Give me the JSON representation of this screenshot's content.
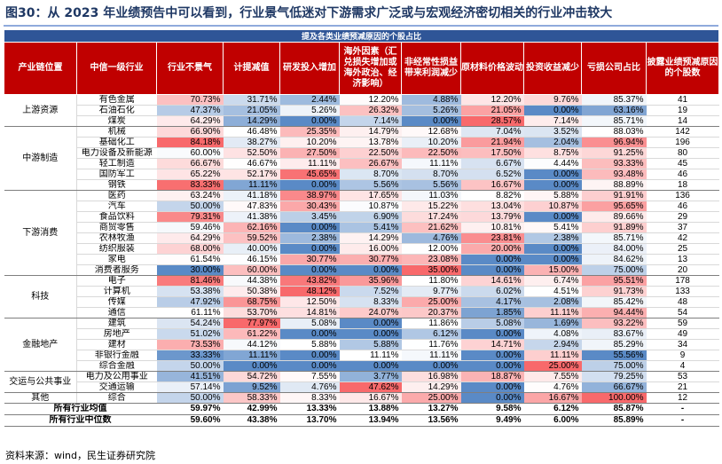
{
  "title": "图30：从 2023 年业绩预告中可以看到，行业景气低迷对下游需求广泛或与宏观经济密切相关的行业冲击较大",
  "source": "资料来源：wind，民生证券研究院",
  "chart_data": {
    "type": "table",
    "super_header": "提及各类业绩预减原因的个股占比",
    "columns": [
      "产业链位置",
      "中信一级行业",
      "行业不景气",
      "计提减值",
      "研发投入增加",
      "海外因素（汇兑损失增加或海外政治、经济影响）",
      "非经常性损益带来利润减少",
      "原材料价格波动",
      "投资收益减少",
      "亏损公司占比",
      "披露业绩预减原因的个股数"
    ],
    "colors": {
      "red": "#f8696b",
      "blue": "#5a8ac6",
      "white": "#ffffff",
      "header": "#c00000",
      "super_header": "#2f5597"
    },
    "groups": [
      {
        "name": "上游资源",
        "rows": [
          {
            "industry": "有色金属",
            "values": [
              "70.73%",
              "31.71%",
              "2.44%",
              "12.20%",
              "4.88%",
              "12.20%",
              "9.76%",
              "85.37%"
            ],
            "count": "41"
          },
          {
            "industry": "石油石化",
            "values": [
              "47.37%",
              "21.05%",
              "5.26%",
              "26.32%",
              "5.26%",
              "21.05%",
              "0.00%",
              "63.16%"
            ],
            "count": "19"
          },
          {
            "industry": "煤炭",
            "values": [
              "64.29%",
              "14.29%",
              "0.00%",
              "7.14%",
              "0.00%",
              "28.57%",
              "7.14%",
              "85.71%"
            ],
            "count": "14"
          }
        ]
      },
      {
        "name": "中游制造",
        "rows": [
          {
            "industry": "机械",
            "values": [
              "66.90%",
              "46.48%",
              "25.35%",
              "14.79%",
              "12.68%",
              "7.04%",
              "3.52%",
              "88.03%"
            ],
            "count": "142"
          },
          {
            "industry": "基础化工",
            "values": [
              "84.18%",
              "38.27%",
              "10.20%",
              "13.78%",
              "10.20%",
              "21.94%",
              "2.04%",
              "96.94%"
            ],
            "count": "196"
          },
          {
            "industry": "电力设备及新能源",
            "values": [
              "60.00%",
              "52.50%",
              "27.50%",
              "22.50%",
              "22.50%",
              "17.50%",
              "8.75%",
              "91.25%"
            ],
            "count": "80"
          },
          {
            "industry": "轻工制造",
            "values": [
              "66.67%",
              "46.67%",
              "11.11%",
              "26.67%",
              "11.11%",
              "6.67%",
              "4.44%",
              "93.33%"
            ],
            "count": "45"
          },
          {
            "industry": "国防军工",
            "values": [
              "65.22%",
              "52.17%",
              "45.65%",
              "8.70%",
              "8.70%",
              "6.52%",
              "0.00%",
              "93.48%"
            ],
            "count": "46"
          },
          {
            "industry": "钢铁",
            "values": [
              "83.33%",
              "11.11%",
              "0.00%",
              "5.56%",
              "5.56%",
              "16.67%",
              "0.00%",
              "88.89%"
            ],
            "count": "18"
          }
        ]
      },
      {
        "name": "下游消费",
        "rows": [
          {
            "industry": "医药",
            "values": [
              "63.24%",
              "41.18%",
              "38.97%",
              "17.65%",
              "11.03%",
              "8.82%",
              "5.88%",
              "91.91%"
            ],
            "count": "136"
          },
          {
            "industry": "汽车",
            "values": [
              "50.00%",
              "47.83%",
              "30.43%",
              "10.87%",
              "15.22%",
              "13.04%",
              "10.87%",
              "95.65%"
            ],
            "count": "46"
          },
          {
            "industry": "食品饮料",
            "values": [
              "79.31%",
              "41.38%",
              "3.45%",
              "6.90%",
              "17.24%",
              "13.79%",
              "0.00%",
              "89.66%"
            ],
            "count": "29"
          },
          {
            "industry": "商贸零售",
            "values": [
              "59.46%",
              "62.16%",
              "0.00%",
              "5.41%",
              "21.62%",
              "10.81%",
              "5.41%",
              "91.89%"
            ],
            "count": "37"
          },
          {
            "industry": "农林牧渔",
            "values": [
              "64.29%",
              "59.52%",
              "2.38%",
              "14.29%",
              "4.76%",
              "23.81%",
              "2.38%",
              "85.71%"
            ],
            "count": "42"
          },
          {
            "industry": "纺织服装",
            "values": [
              "68.00%",
              "40.00%",
              "0.00%",
              "16.00%",
              "12.00%",
              "20.00%",
              "0.00%",
              "84.00%"
            ],
            "count": "25"
          },
          {
            "industry": "家电",
            "values": [
              "61.54%",
              "46.15%",
              "30.77%",
              "30.77%",
              "23.08%",
              "0.00%",
              "0.00%",
              "84.62%"
            ],
            "count": "13"
          },
          {
            "industry": "消费者服务",
            "values": [
              "30.00%",
              "60.00%",
              "0.00%",
              "0.00%",
              "35.00%",
              "0.00%",
              "15.00%",
              "75.00%"
            ],
            "count": "20"
          }
        ]
      },
      {
        "name": "科技",
        "rows": [
          {
            "industry": "电子",
            "values": [
              "81.46%",
              "44.38%",
              "43.82%",
              "35.96%",
              "11.80%",
              "14.61%",
              "6.74%",
              "95.51%"
            ],
            "count": "178"
          },
          {
            "industry": "计算机",
            "values": [
              "53.38%",
              "50.38%",
              "48.12%",
              "7.52%",
              "9.77%",
              "6.02%",
              "4.51%",
              "91.73%"
            ],
            "count": "133"
          },
          {
            "industry": "传媒",
            "values": [
              "47.92%",
              "68.75%",
              "12.50%",
              "8.33%",
              "25.00%",
              "4.17%",
              "2.08%",
              "85.42%"
            ],
            "count": "48"
          },
          {
            "industry": "通信",
            "values": [
              "61.11%",
              "53.70%",
              "14.81%",
              "24.07%",
              "20.37%",
              "1.85%",
              "11.11%",
              "94.44%"
            ],
            "count": "54"
          }
        ]
      },
      {
        "name": "金融地产",
        "rows": [
          {
            "industry": "建筑",
            "values": [
              "54.24%",
              "77.97%",
              "5.08%",
              "0.00%",
              "11.86%",
              "5.08%",
              "1.69%",
              "93.22%"
            ],
            "count": "59"
          },
          {
            "industry": "房地产",
            "values": [
              "51.02%",
              "61.22%",
              "0.00%",
              "0.00%",
              "6.12%",
              "0.00%",
              "4.08%",
              "83.67%"
            ],
            "count": "49"
          },
          {
            "industry": "建材",
            "values": [
              "73.53%",
              "44.12%",
              "5.88%",
              "5.88%",
              "11.76%",
              "14.71%",
              "2.94%",
              "85.29%"
            ],
            "count": "34"
          },
          {
            "industry": "非银行金融",
            "values": [
              "33.33%",
              "11.11%",
              "0.00%",
              "11.11%",
              "11.11%",
              "0.00%",
              "11.11%",
              "55.56%"
            ],
            "count": "9"
          },
          {
            "industry": "综合金融",
            "values": [
              "50.00%",
              "0.00%",
              "0.00%",
              "0.00%",
              "0.00%",
              "0.00%",
              "25.00%",
              "75.00%"
            ],
            "count": "4"
          }
        ]
      },
      {
        "name": "交运与公共事业",
        "rows": [
          {
            "industry": "电力及公用事业",
            "values": [
              "41.51%",
              "54.72%",
              "7.55%",
              "3.77%",
              "16.98%",
              "18.87%",
              "7.55%",
              "79.25%"
            ],
            "count": "53"
          },
          {
            "industry": "交通运输",
            "values": [
              "57.14%",
              "9.52%",
              "4.76%",
              "47.62%",
              "14.29%",
              "0.00%",
              "4.76%",
              "66.67%"
            ],
            "count": "21"
          }
        ]
      },
      {
        "name": "其他",
        "rows": [
          {
            "industry": "综合",
            "values": [
              "50.00%",
              "58.33%",
              "8.33%",
              "16.67%",
              "25.00%",
              "0.00%",
              "16.67%",
              "100.00%"
            ],
            "count": "12"
          }
        ]
      }
    ],
    "footer": [
      {
        "label": "所有行业均值",
        "values": [
          "59.97%",
          "42.99%",
          "13.33%",
          "13.88%",
          "13.27%",
          "9.58%",
          "6.12%",
          "85.87%"
        ],
        "count": "-"
      },
      {
        "label": "所有行业中位数",
        "values": [
          "59.60%",
          "43.38%",
          "13.70%",
          "13.94%",
          "13.56%",
          "9.49%",
          "6.00%",
          "85.89%"
        ],
        "count": "-"
      }
    ]
  }
}
